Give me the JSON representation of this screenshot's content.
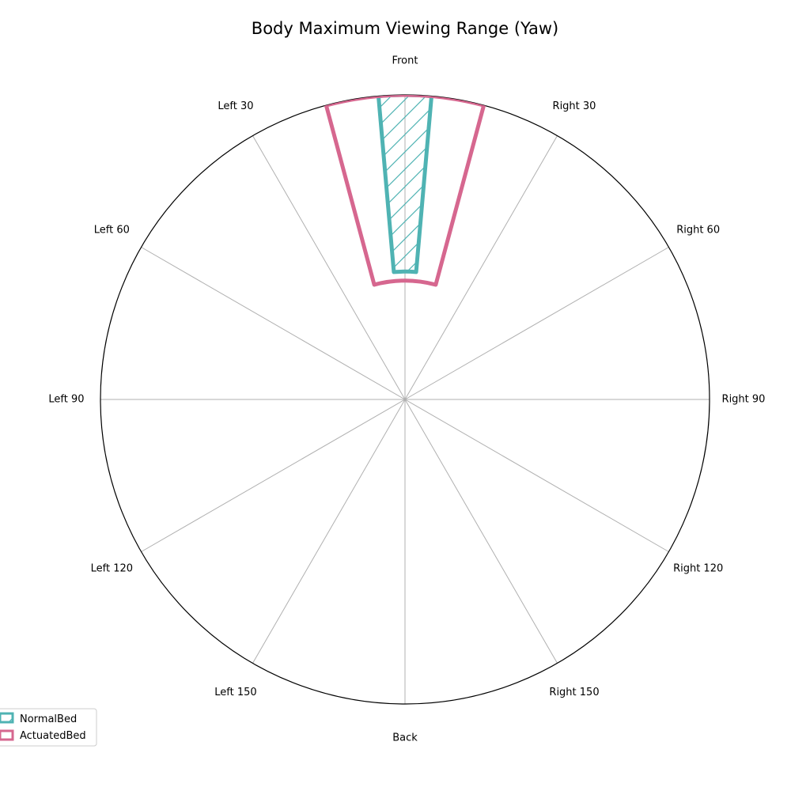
{
  "chart_data": {
    "type": "polar-range",
    "title": "Body Maximum Viewing Range (Yaw)",
    "angular_labels": [
      {
        "angle": 0,
        "label": "Front"
      },
      {
        "angle": 30,
        "label": "Right 30"
      },
      {
        "angle": 60,
        "label": "Right 60"
      },
      {
        "angle": 90,
        "label": "Right 90"
      },
      {
        "angle": 120,
        "label": "Right 120"
      },
      {
        "angle": 150,
        "label": "Right 150"
      },
      {
        "angle": 180,
        "label": "Back"
      },
      {
        "angle": -150,
        "label": "Left 150"
      },
      {
        "angle": -120,
        "label": "Left 120"
      },
      {
        "angle": -90,
        "label": "Left 90"
      },
      {
        "angle": -60,
        "label": "Left 60"
      },
      {
        "angle": -30,
        "label": "Left 30"
      }
    ],
    "radial_range": [
      0,
      1
    ],
    "radial_ticks_visible": false,
    "grid": true,
    "series": [
      {
        "name": "NormalBed",
        "color": "#4fb3b3",
        "hatch": true,
        "angle_min": -5,
        "angle_max": 5,
        "r_inner": 0.42,
        "r_outer": 1.0
      },
      {
        "name": "ActuatedBed",
        "color": "#d6678f",
        "hatch": false,
        "angle_min": -15,
        "angle_max": 15,
        "r_inner": 0.39,
        "r_outer": 1.0
      }
    ],
    "legend": {
      "placement": "bottom-left"
    }
  }
}
